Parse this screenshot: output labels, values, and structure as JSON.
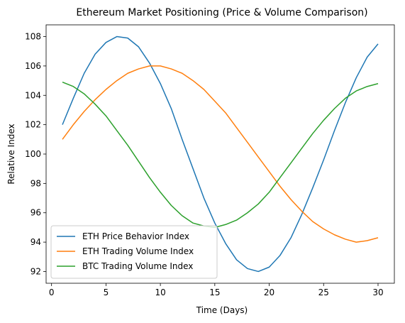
{
  "chart_data": {
    "type": "line",
    "title": "Ethereum Market Positioning (Price & Volume Comparison)",
    "xlabel": "Time (Days)",
    "ylabel": "Relative Index",
    "xlim": [
      -0.5,
      31.5
    ],
    "ylim": [
      91.2,
      108.8
    ],
    "xticks": [
      0,
      5,
      10,
      15,
      20,
      25,
      30
    ],
    "yticks": [
      92,
      94,
      96,
      98,
      100,
      102,
      104,
      106,
      108
    ],
    "grid": false,
    "legend_position": "lower-left",
    "x": [
      1,
      2,
      3,
      4,
      5,
      6,
      7,
      8,
      9,
      10,
      11,
      12,
      13,
      14,
      15,
      16,
      17,
      18,
      19,
      20,
      21,
      22,
      23,
      24,
      25,
      26,
      27,
      28,
      29,
      30
    ],
    "series": [
      {
        "name": "ETH Price Behavior Index",
        "color": "#1f77b4",
        "values": [
          102.0,
          103.8,
          105.5,
          106.8,
          107.6,
          108.0,
          107.9,
          107.3,
          106.2,
          104.8,
          103.1,
          101.0,
          99.0,
          97.0,
          95.3,
          93.9,
          92.8,
          92.2,
          92.0,
          92.3,
          93.1,
          94.3,
          95.9,
          97.7,
          99.6,
          101.6,
          103.5,
          105.2,
          106.6,
          107.5
        ]
      },
      {
        "name": "ETH Trading Volume Index",
        "color": "#ff7f0e",
        "values": [
          101.0,
          102.0,
          102.9,
          103.7,
          104.4,
          105.0,
          105.5,
          105.8,
          106.0,
          106.0,
          105.8,
          105.5,
          105.0,
          104.4,
          103.6,
          102.8,
          101.8,
          100.8,
          99.8,
          98.8,
          97.8,
          96.9,
          96.1,
          95.4,
          94.9,
          94.5,
          94.2,
          94.0,
          94.1,
          94.3
        ]
      },
      {
        "name": "BTC Trading Volume Index",
        "color": "#2ca02c",
        "values": [
          104.9,
          104.6,
          104.1,
          103.4,
          102.6,
          101.6,
          100.6,
          99.5,
          98.4,
          97.4,
          96.5,
          95.8,
          95.3,
          95.1,
          95.0,
          95.2,
          95.5,
          96.0,
          96.6,
          97.4,
          98.4,
          99.4,
          100.4,
          101.4,
          102.3,
          103.1,
          103.8,
          104.3,
          104.6,
          104.8
        ]
      }
    ]
  }
}
